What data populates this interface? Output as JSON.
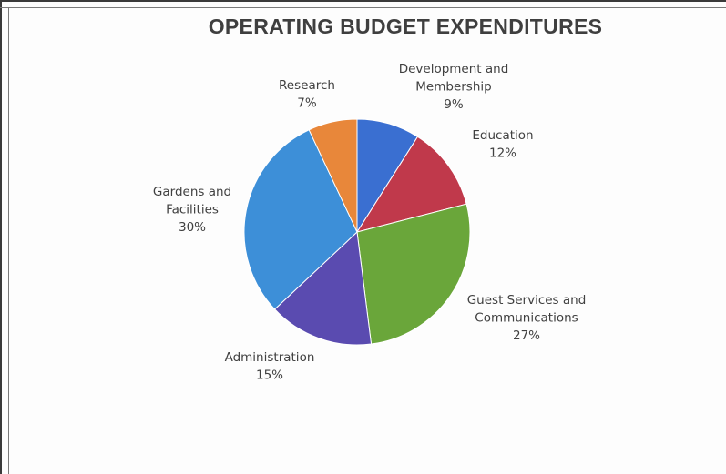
{
  "chart_data": {
    "type": "pie",
    "title": "OPERATING BUDGET EXPENDITURES",
    "slices": [
      {
        "name": "Development and Membership",
        "label_lines": [
          "Development and",
          "Membership"
        ],
        "value": 9,
        "value_label": "9%",
        "color": "#3a6fd1"
      },
      {
        "name": "Education",
        "label_lines": [
          "Education"
        ],
        "value": 12,
        "value_label": "12%",
        "color": "#c0394b"
      },
      {
        "name": "Guest Services and Communications",
        "label_lines": [
          "Guest Services and",
          "Communications"
        ],
        "value": 27,
        "value_label": "27%",
        "color": "#6aa63a"
      },
      {
        "name": "Administration",
        "label_lines": [
          "Administration"
        ],
        "value": 15,
        "value_label": "15%",
        "color": "#5a4bb0"
      },
      {
        "name": "Gardens and Facilities",
        "label_lines": [
          "Gardens and",
          "Facilities"
        ],
        "value": 30,
        "value_label": "30%",
        "color": "#3d8fd8"
      },
      {
        "name": "Research",
        "label_lines": [
          "Research"
        ],
        "value": 7,
        "value_label": "7%",
        "color": "#e8873a"
      }
    ],
    "legend": "none (labels on chart)"
  }
}
